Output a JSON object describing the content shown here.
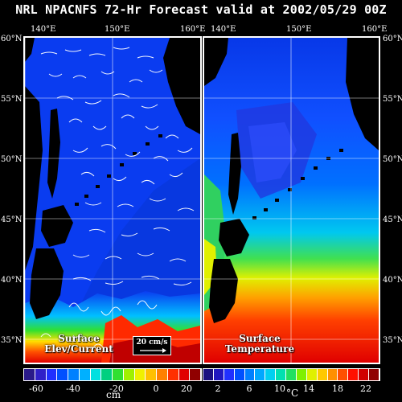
{
  "title": "NRL NPACNFS 72-Hr Forecast valid at 2002/05/29 00Z",
  "axes": {
    "left_lon_labels": [
      "140°E",
      "150°E",
      "160°E"
    ],
    "right_lon_labels": [
      "140°E",
      "150°E",
      "160°E"
    ],
    "lat_labels_left": [
      "60°N",
      "55°N",
      "50°N",
      "45°N",
      "40°N",
      "35°N"
    ],
    "lat_labels_right": [
      "60°N",
      "55°N",
      "50°N",
      "45°N",
      "40°N",
      "35°N"
    ]
  },
  "left_panel": {
    "caption_line1": "Surface",
    "caption_line2": "Elev/Current",
    "scale_label": "20 cm/s",
    "colorbar_ticks": [
      "-60",
      "-40",
      "-20",
      "0",
      "20"
    ],
    "colorbar_unit": "cm",
    "colorbar_colors": [
      "#2a1a8a",
      "#3020c8",
      "#2030ff",
      "#0050ff",
      "#0080ff",
      "#00b0ff",
      "#00e0e0",
      "#00d080",
      "#30e030",
      "#a0f000",
      "#f0f000",
      "#ffc000",
      "#ff8000",
      "#ff3000",
      "#e00000",
      "#900000"
    ]
  },
  "right_panel": {
    "caption_line1": "Surface",
    "caption_line2": "Temperature",
    "colorbar_ticks": [
      "2",
      "6",
      "10",
      "14",
      "18",
      "22"
    ],
    "colorbar_unit": "°C",
    "colorbar_colors": [
      "#1a1080",
      "#2018c0",
      "#2030ff",
      "#0050ff",
      "#0080ff",
      "#00a8ff",
      "#00d0f0",
      "#00e0b0",
      "#20e060",
      "#80f000",
      "#e0f000",
      "#ffc800",
      "#ff9000",
      "#ff5000",
      "#ff1000",
      "#d00000",
      "#900000"
    ]
  },
  "colors": {
    "sea_low": "#0a3cf0",
    "land": "#000000",
    "warm": "#ff2000",
    "border": "#ffffff"
  }
}
